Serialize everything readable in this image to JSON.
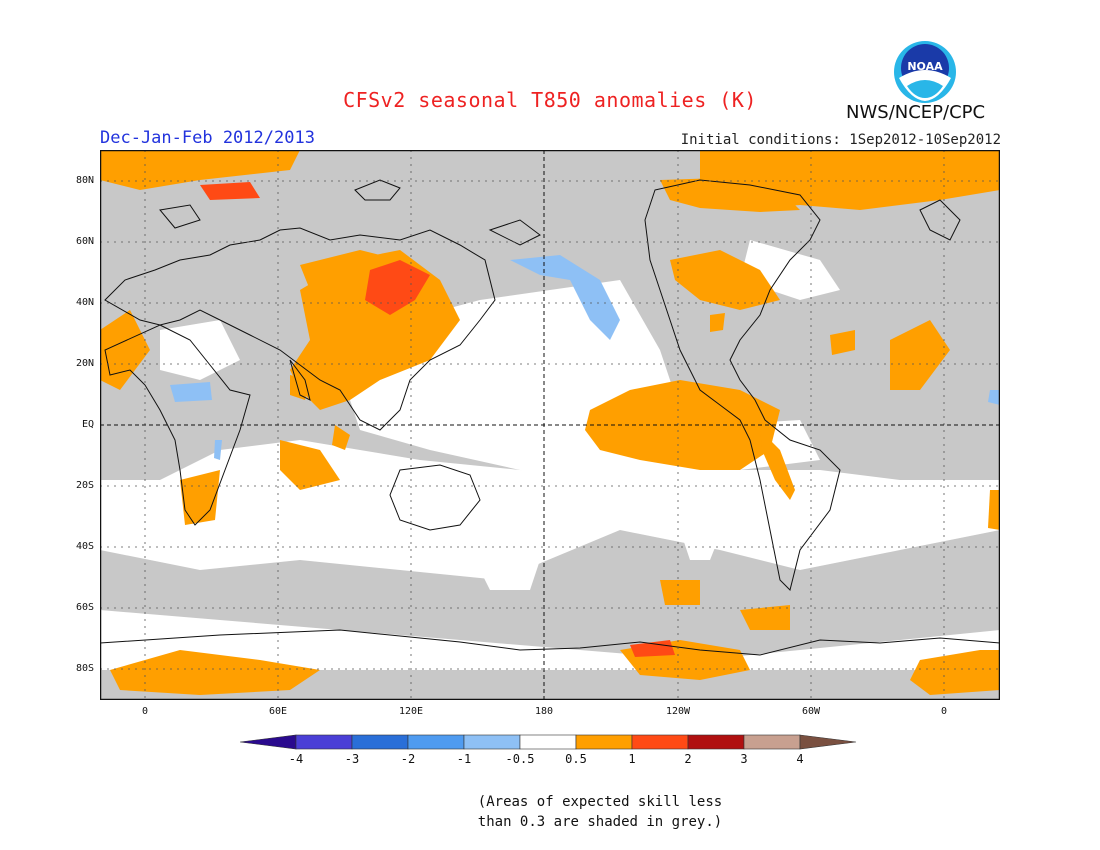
{
  "header": {
    "title": "CFSv2 seasonal T850 anomalies (K)",
    "season": "Dec-Jan-Feb 2012/2013",
    "initial_conditions": "Initial conditions: 1Sep2012-10Sep2012",
    "agency": "NWS/NCEP/CPC",
    "logo_text": "NOAA"
  },
  "map": {
    "latitude_labels": [
      "80N",
      "60N",
      "40N",
      "20N",
      "EQ",
      "20S",
      "40S",
      "60S",
      "80S"
    ],
    "longitude_labels": [
      "0",
      "60E",
      "120E",
      "180",
      "120W",
      "60W",
      "0"
    ]
  },
  "legend": {
    "tick_labels": [
      "-4",
      "-3",
      "-2",
      "-1",
      "-0.5",
      "0.5",
      "1",
      "2",
      "3",
      "4"
    ],
    "colors": [
      "#2a0a8e",
      "#4a3fd6",
      "#2a6fd8",
      "#4f9bf0",
      "#8ec0f5",
      "#ffffff",
      "#ff9f00",
      "#ff4a15",
      "#b01010",
      "#c8a090",
      "#7a5040"
    ],
    "skill_mask_color": "#c8c8c8"
  },
  "note": {
    "line1": "(Areas of expected skill less",
    "line2": "than 0.3 are shaded in grey.)"
  }
}
